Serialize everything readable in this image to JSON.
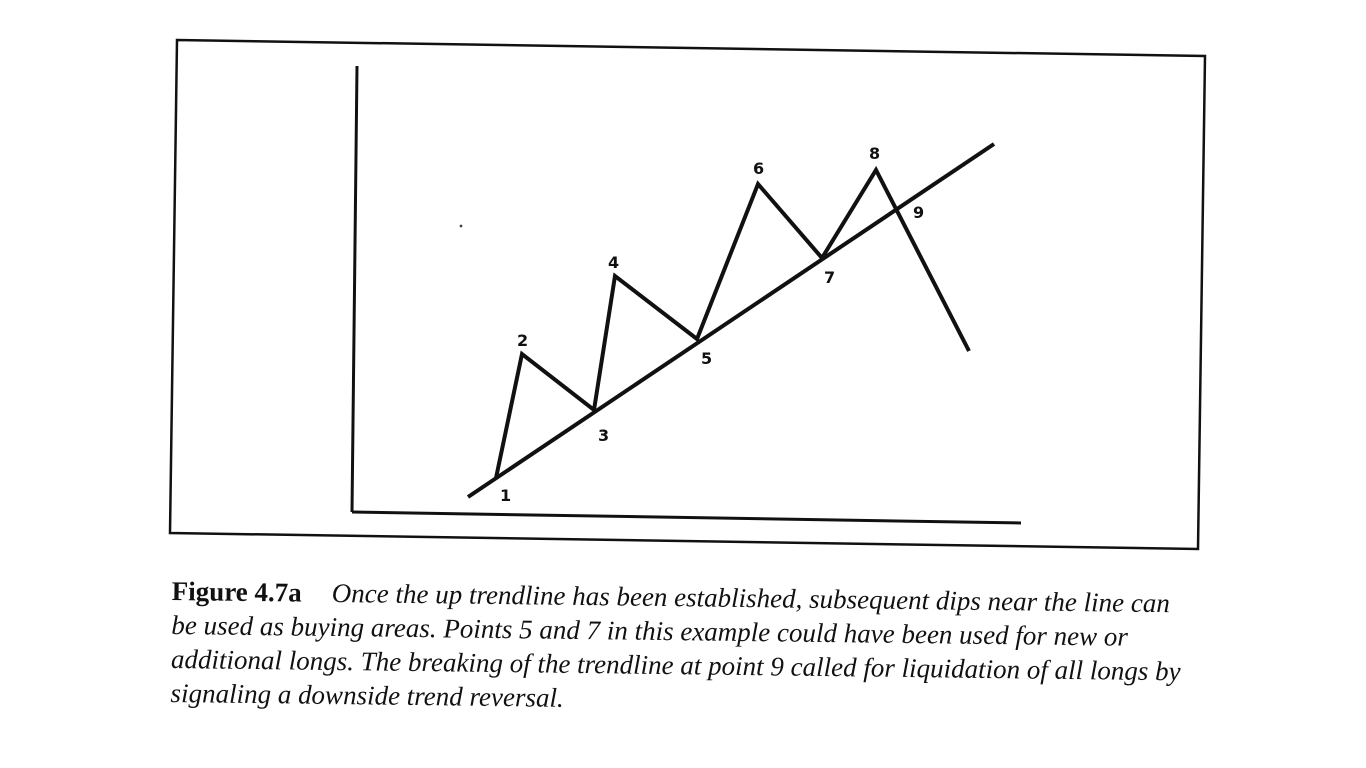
{
  "figure": {
    "label": "Figure 4.7a",
    "caption": "Once the up trendline has been established, subsequent dips near the line can be used as buying areas. Points 5 and 7 in this example could have been used for new or additional longs. The breaking of the trendline at point 9 called for liquidation of all longs by signaling a downside trend reversal."
  },
  "diagram": {
    "points": [
      {
        "label": "1"
      },
      {
        "label": "2"
      },
      {
        "label": "3"
      },
      {
        "label": "4"
      },
      {
        "label": "5"
      },
      {
        "label": "6"
      },
      {
        "label": "7"
      },
      {
        "label": "8"
      },
      {
        "label": "9"
      }
    ]
  }
}
